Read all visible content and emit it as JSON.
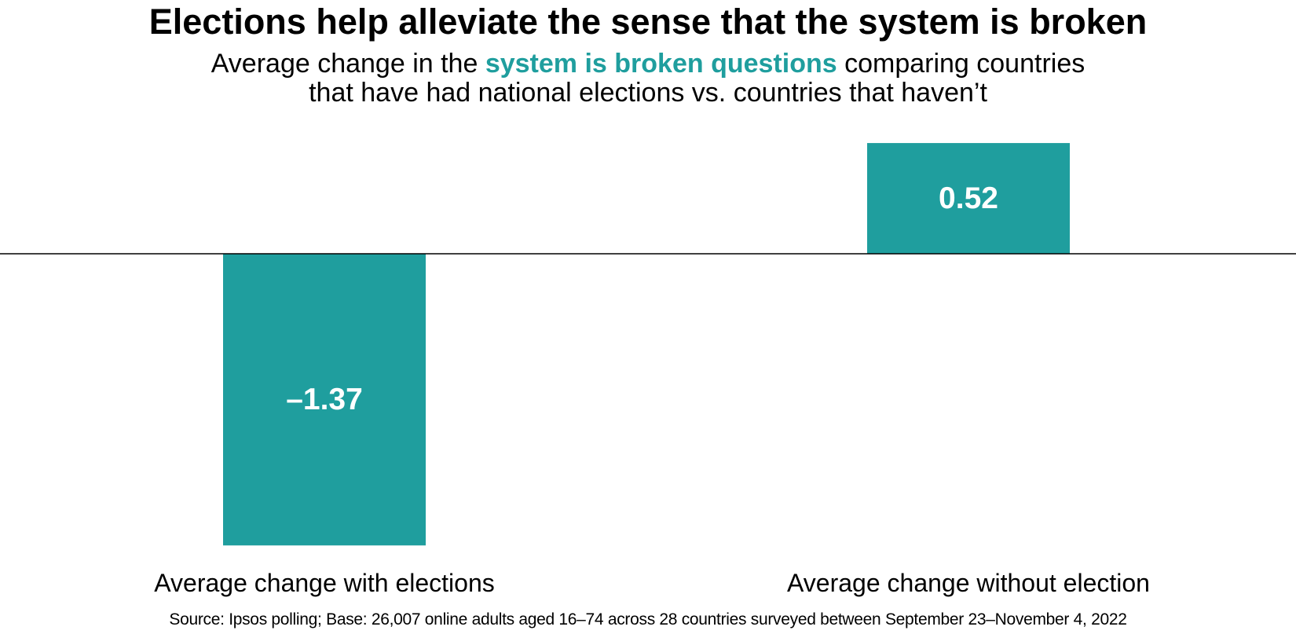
{
  "chart_data": {
    "type": "bar",
    "title": "Elections help alleviate the sense that the system is broken",
    "subtitle": {
      "line1_before": "Average change in the ",
      "line1_highlight": "system is broken questions",
      "line1_after": " comparing countries",
      "line2": "that have had national elections vs. countries that haven’t"
    },
    "categories": [
      "Average change with elections",
      "Average change without election"
    ],
    "values": [
      -1.37,
      0.52
    ],
    "value_labels": [
      "–1.37",
      "0.52"
    ],
    "xlabel": "",
    "ylabel": "",
    "ylim": [
      -1.37,
      0.52
    ],
    "grid": false,
    "legend": "none",
    "source": "Source: Ipsos polling; Base: 26,007 online adults aged 16–74 across 28 countries surveyed between September 23–November 4, 2022"
  },
  "colors": {
    "bar": "#1f9e9e",
    "highlight": "#1f9e9e",
    "baseline": "#000000",
    "text": "#000000",
    "value_text": "#ffffff"
  }
}
